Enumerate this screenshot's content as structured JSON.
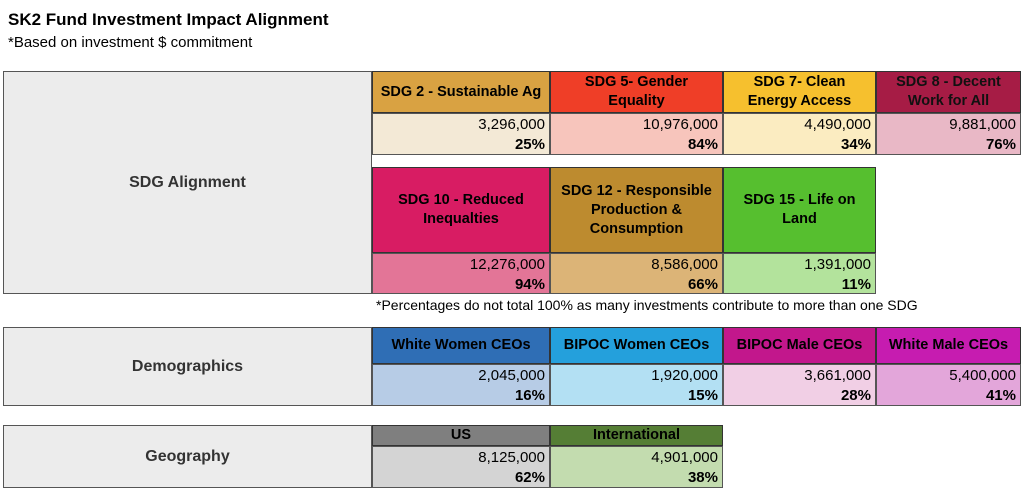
{
  "title": "SK2 Fund Investment Impact Alignment",
  "subtitle": "*Based on investment $ commitment",
  "sections": {
    "sdg": {
      "label": "SDG Alignment",
      "row1": [
        {
          "name": "SDG 2 - Sustainable Ag",
          "amount": "3,296,000",
          "pct": "25%",
          "header_color": "#d9a242",
          "cell_color": "#f3e9d6"
        },
        {
          "name": "SDG 5- Gender Equality",
          "amount": "10,976,000",
          "pct": "84%",
          "header_color": "#ef3e27",
          "cell_color": "#f7c5bc"
        },
        {
          "name": "SDG 7- Clean Energy Access",
          "amount": "4,490,000",
          "pct": "34%",
          "header_color": "#f6c02e",
          "cell_color": "#fbecc1"
        },
        {
          "name": "SDG 8 - Decent Work for All",
          "amount": "9,881,000",
          "pct": "76%",
          "header_color": "#a61c45",
          "cell_color": "#e9b8c6"
        }
      ],
      "row2": [
        {
          "name": "SDG 10 - Reduced Inequalties",
          "amount": "12,276,000",
          "pct": "94%",
          "header_color": "#d81c63",
          "cell_color": "#e37597"
        },
        {
          "name": "SDG 12 - Responsible Production & Consumption",
          "amount": "8,586,000",
          "pct": "66%",
          "header_color": "#bd8b2f",
          "cell_color": "#dcb477"
        },
        {
          "name": "SDG 15 - Life on Land",
          "amount": "1,391,000",
          "pct": "11%",
          "header_color": "#56bf2f",
          "cell_color": "#b3e39c"
        }
      ],
      "note": "*Percentages do not total 100% as many investments contribute to more than one SDG"
    },
    "demographics": {
      "label": "Demographics",
      "cells": [
        {
          "name": "White Women CEOs",
          "amount": "2,045,000",
          "pct": "16%",
          "header_color": "#2f6eb5",
          "cell_color": "#b7cce6"
        },
        {
          "name": "BIPOC Women CEOs",
          "amount": "1,920,000",
          "pct": "15%",
          "header_color": "#24a0dc",
          "cell_color": "#b3e0f3"
        },
        {
          "name": "BIPOC Male CEOs",
          "amount": "3,661,000",
          "pct": "28%",
          "header_color": "#c2178c",
          "cell_color": "#f1cfe5"
        },
        {
          "name": "White Male CEOs",
          "amount": "5,400,000",
          "pct": "41%",
          "header_color": "#c61cb0",
          "cell_color": "#e3a6da"
        }
      ]
    },
    "geography": {
      "label": "Geography",
      "cells": [
        {
          "name": "US",
          "amount": "8,125,000",
          "pct": "62%",
          "header_color": "#7f7f7f",
          "cell_color": "#d4d4d4"
        },
        {
          "name": "International",
          "amount": "4,901,000",
          "pct": "38%",
          "header_color": "#557e35",
          "cell_color": "#c3dcaf"
        }
      ]
    }
  }
}
